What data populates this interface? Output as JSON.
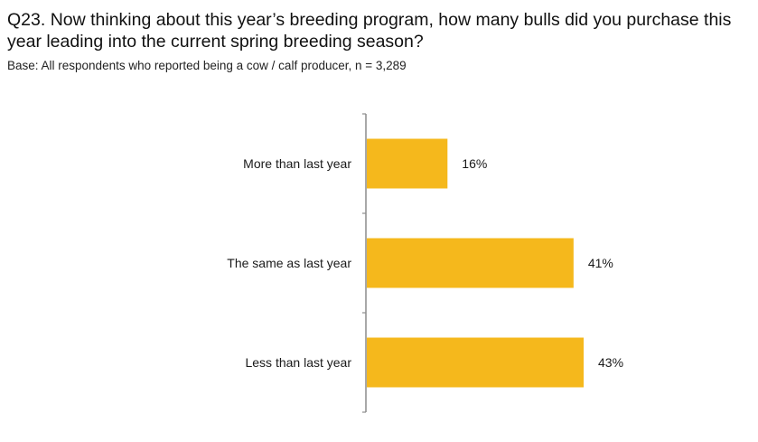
{
  "header": {
    "question": "Q23. Now thinking about this year’s breeding program, how many bulls did you purchase this year leading into the current spring breeding season?",
    "base": "Base: All respondents who reported being a cow / calf producer, n = 3,289"
  },
  "chart_data": {
    "type": "bar",
    "orientation": "horizontal",
    "categories": [
      "More than last year",
      "The same as last year",
      "Less than last year"
    ],
    "values": [
      16,
      41,
      43
    ],
    "value_labels": [
      "16%",
      "41%",
      "43%"
    ],
    "xlim": [
      0,
      43
    ],
    "bar_color": "#F5B81C",
    "axis_color": "#8c8c8c",
    "grid": false,
    "legend": "none"
  }
}
